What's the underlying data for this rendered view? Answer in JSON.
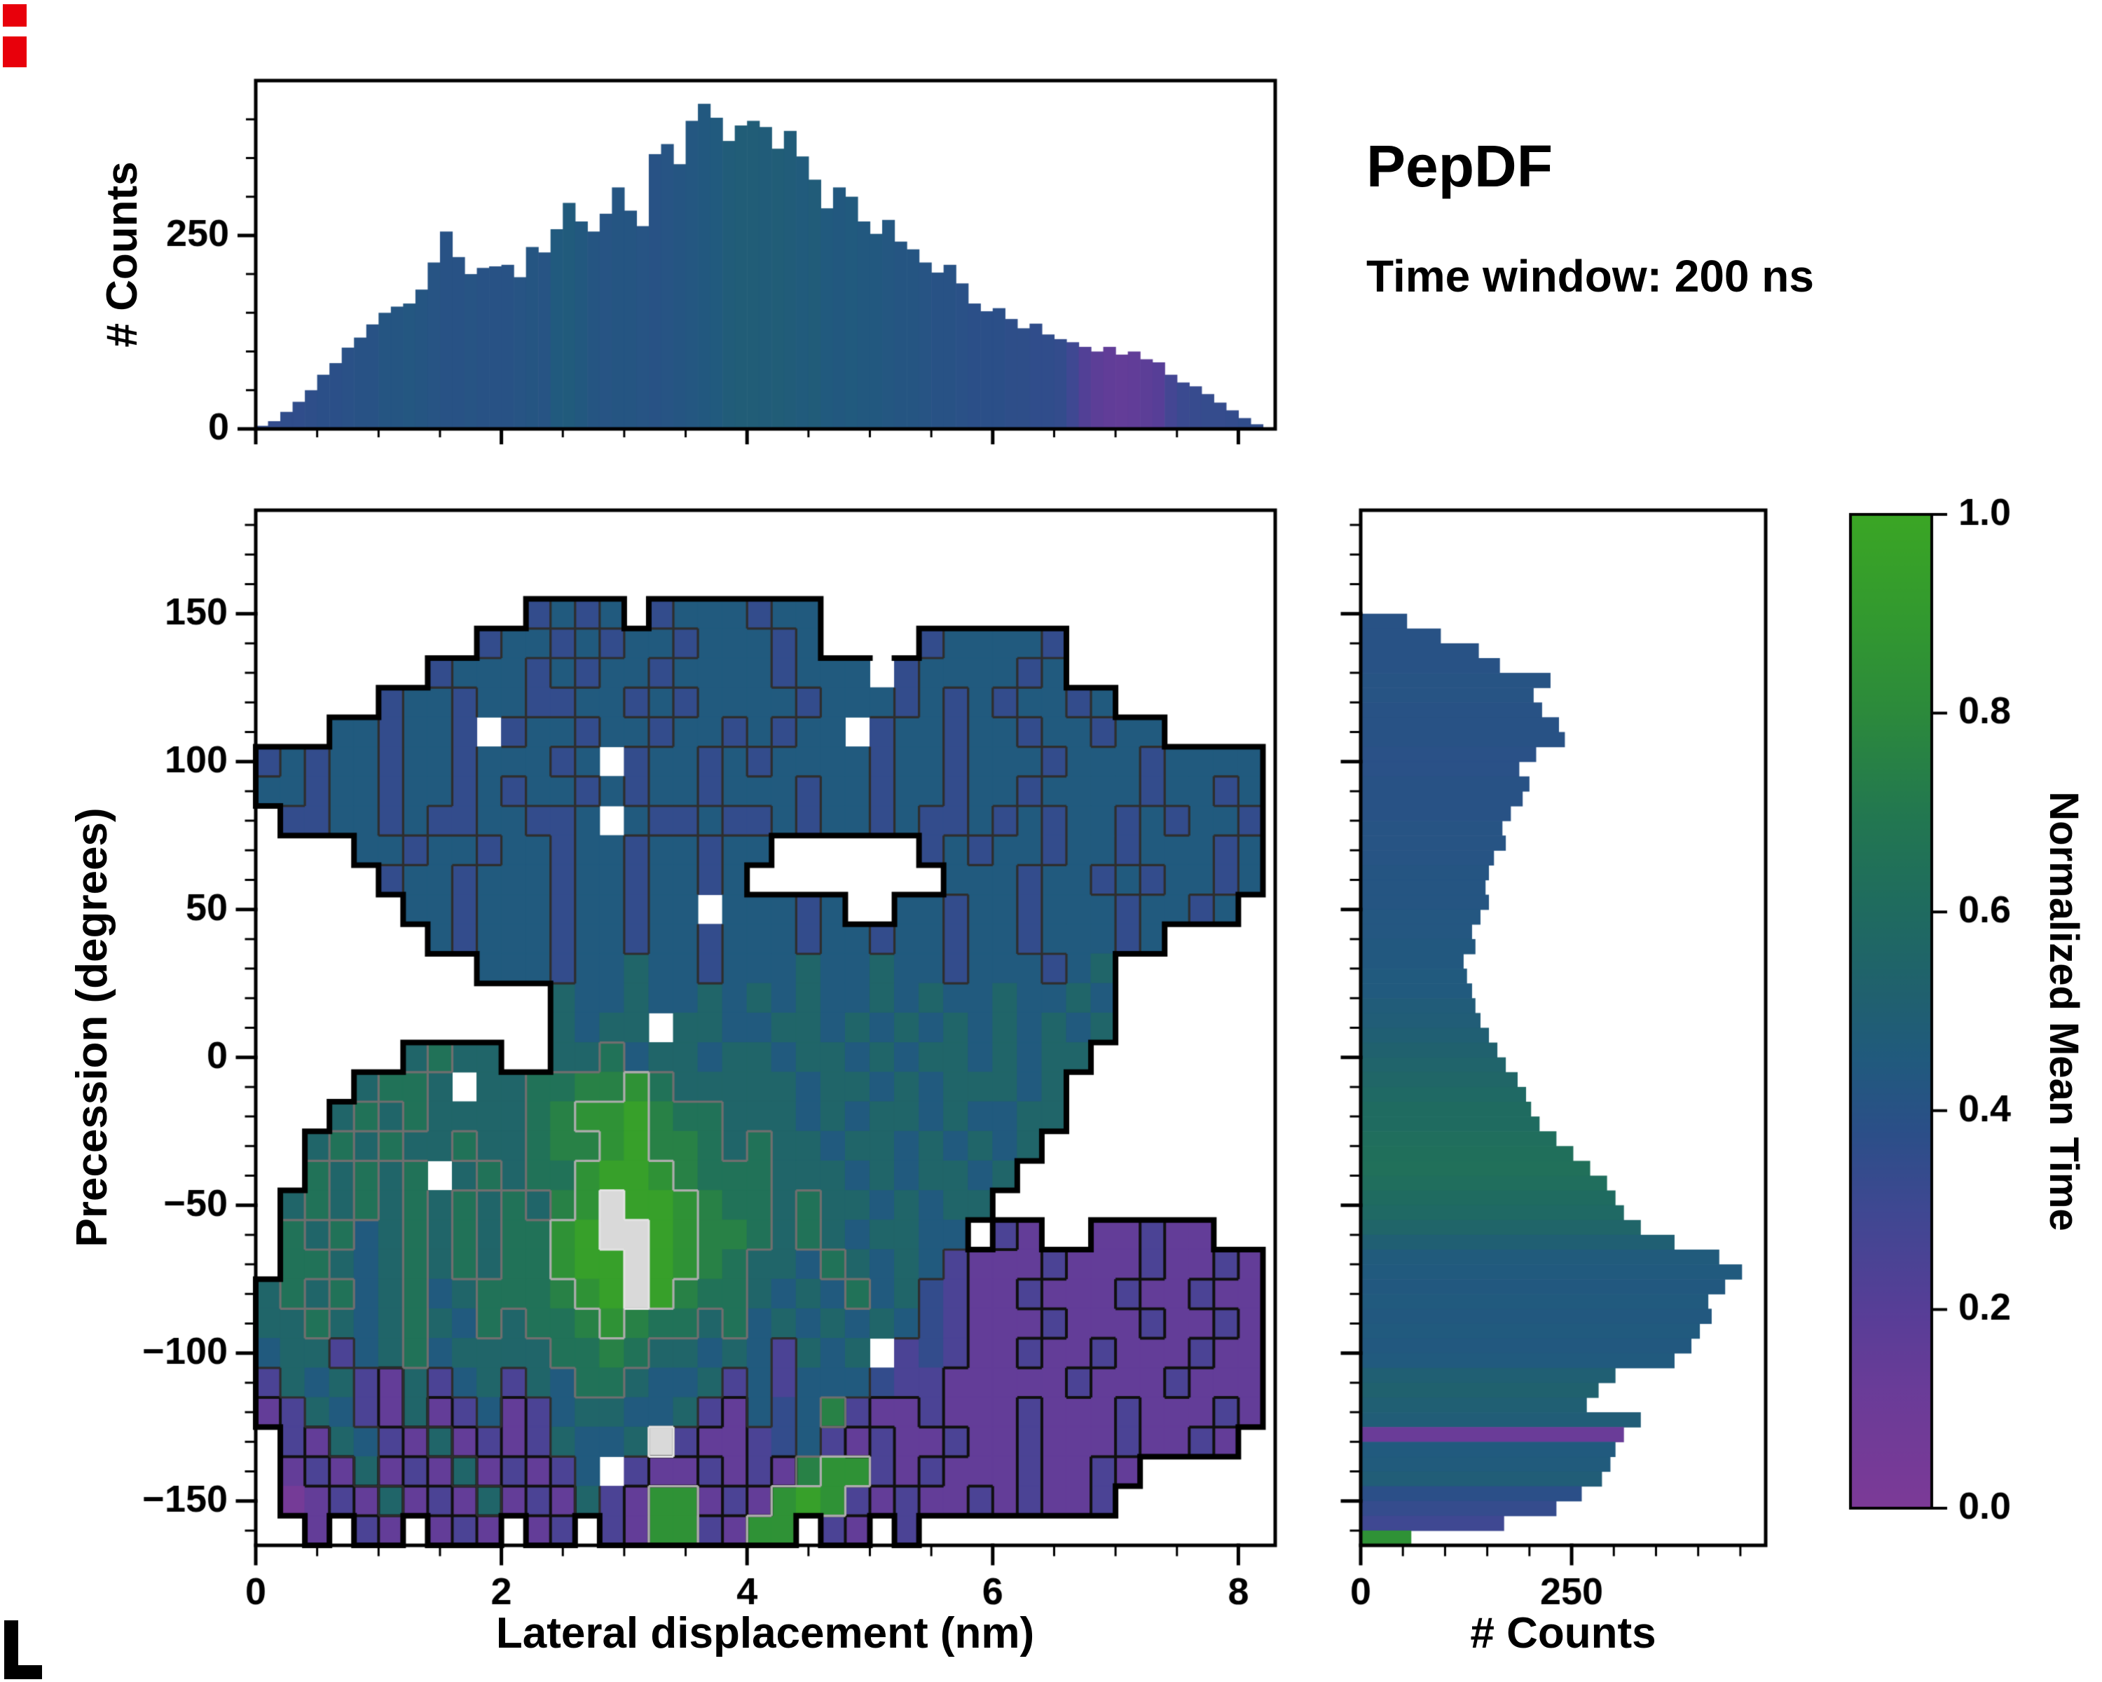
{
  "figure": {
    "title": "PepDF",
    "subtitle": "Time window: 200 ns",
    "background": "#ffffff"
  },
  "labels": {
    "top_ylabel": "# Counts",
    "main_ylabel": "Precession (degrees)",
    "main_xlabel": "Lateral displacement (nm)",
    "right_xlabel": "# Counts",
    "colorbar_label": "Normalized Mean Time"
  },
  "artifact_colors": {
    "red_marks": "#e8000b",
    "corner_mark": "#000000"
  },
  "colormap": {
    "name": "purple-blue-green",
    "stops": [
      [
        0.0,
        "#7c3a97"
      ],
      [
        0.12,
        "#6a3c98"
      ],
      [
        0.2,
        "#573e97"
      ],
      [
        0.3,
        "#3f4892"
      ],
      [
        0.38,
        "#2b4f88"
      ],
      [
        0.45,
        "#215a7e"
      ],
      [
        0.52,
        "#20616e"
      ],
      [
        0.6,
        "#1f6b60"
      ],
      [
        0.7,
        "#237850"
      ],
      [
        0.8,
        "#2c8a3c"
      ],
      [
        0.9,
        "#339a2f"
      ],
      [
        1.0,
        "#3ba625"
      ]
    ],
    "white_hotspot": "#d9d9d9"
  },
  "chart_data": [
    {
      "id": "top_histogram",
      "type": "bar",
      "ylabel": "# Counts",
      "xlim": [
        0,
        8.3
      ],
      "ylim": [
        0,
        450
      ],
      "yticks": [
        0,
        250
      ],
      "bin_start": 0,
      "bin_width": 0.1,
      "counts": [
        4,
        10,
        22,
        35,
        50,
        70,
        85,
        105,
        118,
        135,
        150,
        158,
        162,
        180,
        215,
        255,
        222,
        200,
        208,
        210,
        212,
        196,
        235,
        228,
        258,
        292,
        268,
        255,
        278,
        312,
        282,
        262,
        355,
        368,
        342,
        398,
        420,
        402,
        372,
        392,
        398,
        390,
        362,
        385,
        352,
        322,
        285,
        312,
        300,
        268,
        252,
        270,
        242,
        232,
        215,
        202,
        212,
        188,
        162,
        152,
        156,
        142,
        130,
        136,
        122,
        116,
        112,
        106,
        100,
        106,
        96,
        100,
        90,
        86,
        70,
        60,
        55,
        45,
        34,
        24,
        14,
        6
      ],
      "mean_time": [
        0.35,
        0.35,
        0.36,
        0.36,
        0.37,
        0.38,
        0.38,
        0.39,
        0.4,
        0.4,
        0.42,
        0.42,
        0.43,
        0.42,
        0.41,
        0.4,
        0.4,
        0.41,
        0.4,
        0.4,
        0.4,
        0.41,
        0.42,
        0.41,
        0.45,
        0.46,
        0.44,
        0.42,
        0.41,
        0.42,
        0.42,
        0.41,
        0.4,
        0.41,
        0.42,
        0.43,
        0.44,
        0.45,
        0.47,
        0.48,
        0.48,
        0.47,
        0.48,
        0.47,
        0.46,
        0.47,
        0.45,
        0.44,
        0.45,
        0.44,
        0.44,
        0.43,
        0.42,
        0.42,
        0.41,
        0.4,
        0.4,
        0.39,
        0.38,
        0.38,
        0.38,
        0.37,
        0.37,
        0.36,
        0.36,
        0.35,
        0.3,
        0.22,
        0.18,
        0.16,
        0.15,
        0.16,
        0.18,
        0.2,
        0.28,
        0.32,
        0.33,
        0.34,
        0.34,
        0.35,
        0.36,
        0.36
      ]
    },
    {
      "id": "main_heatmap",
      "type": "heatmap",
      "xlabel": "Lateral displacement (nm)",
      "ylabel": "Precession (degrees)",
      "xlim": [
        0,
        8.3
      ],
      "ylim": [
        -165,
        185
      ],
      "xticks": [
        0,
        2,
        4,
        6,
        8
      ],
      "yticks": [
        -150,
        -100,
        -50,
        0,
        50,
        100,
        150
      ],
      "value_label": "Normalized Mean Time",
      "grid_top": 185,
      "grid_left": 0,
      "cell_size": {
        "x": 0.2,
        "y": 10
      },
      "encoding": "each row = 41 cells; digit d -> value (d+0.5)/10 ; w -> white hotspot (1.0) ; x -> empty speckle ; . -> outside region",
      "row_chunks": [
        [
          "..........",
          "..........",
          "..........",
          "..........."
        ],
        [
          "..........",
          "..........",
          "..........",
          "..........."
        ],
        [
          "..........",
          "..........",
          "..........",
          "..........."
        ],
        [
          "..........",
          ".3434.3444",
          "344.......",
          "..........."
        ],
        [
          ".........3",
          "4434344344",
          "434....344",
          "443........"
        ],
        [
          ".......344",
          "4343443444",
          "43444x3444",
          "434........"
        ],
        [
          ".....34434",
          "4334434344",
          "4434443434",
          "34434......"
        ],
        [
          "...443443x",
          "3443443443",
          "4344x34434",
          "4344344...."
        ],
        [
          "3434434434",
          "4434x34434",
          "3444434434",
          "44344434444"
        ],
        [
          "4434434434",
          "3443434434",
          "4434434434",
          "43444434434"
        ],
        [
          ".334434334",
          "4334x43343",
          "3434434334",
          "34344343443"
        ],
        [
          "....443443",
          "4434434434",
          "4......343",
          "44344344434"
        ],
        [
          ".....34434",
          "4434434434",
          "........44",
          "43443434434"
        ],
        [
          "......4434",
          "44344344x4",
          "4434..4434",
          "4344434434."
        ],
        [
          ".......434",
          "4434434434",
          "4434434434",
          "4344434...."
        ],
        [
          ".........4",
          "4434454434",
          "4454454434",
          "44345......"
        ],
        [
          "..........",
          "..54454454",
          "5454454544",
          "54454......"
        ],
        [
          "..........",
          "..5455x554",
          "4554545454",
          "54545......"
        ],
        [
          "......5655",
          "..55645545",
          "5455454554",
          "5455......."
        ],
        [
          "....5665x5",
          "5667786555",
          "5545545455",
          "545........"
        ],
        [
          "...5656555",
          "5678897665",
          "5545455454",
          "455........"
        ],
        [
          "..56565565",
          "5677897765",
          "6554554545",
          "45........."
        ],
        [
          "..65656x56",
          "5668998766",
          "6555454554",
          "5.........."
        ],
        [
          ".565656565",
          "6578w99876",
          "6565545455",
          "..........."
        ],
        [
          ".656456565",
          "6689ww9877",
          "656545544.",
          "21..11211.."
        ],
        [
          ".665456565",
          "66899w9876",
          "5546545421",
          "11211121121"
        ],
        [
          "5656456456",
          "66789w9766",
          "5454645321",
          "12111211211"
        ],
        [
          "5565456546",
          "5667876656",
          "4545454321",
          "11211121121"
        ],
        [
          "4552456455",
          "5566765545",
          "42545x2321",
          "12112111211"
        ],
        [
          "2545215245",
          "2546654452",
          "4244432211",
          "11121112111"
        ],
        [
          "1254215124",
          "1245544521",
          "4347211211",
          "12111211121"
        ],
        [
          ".215421512",
          "125445w211",
          "2342121121",
          "1211121121."
        ],
        [
          ".121512151",
          "2124x21121",
          "2178821211",
          "121121....."
        ],
        [
          ".012151215",
          "1215218812",
          "1898212112",
          "12112......"
        ],
        [
          "..1.21.121",
          ".12.218821",
          "88.21.2...",
          "..........."
        ]
      ]
    },
    {
      "id": "right_histogram",
      "type": "bar",
      "orientation": "horizontal",
      "xlabel": "# Counts",
      "xlim": [
        0,
        480
      ],
      "xticks": [
        0,
        250
      ],
      "ylim": [
        -165,
        185
      ],
      "bin_start_top": 185,
      "bin_width": 5,
      "counts": [
        0,
        0,
        0,
        0,
        0,
        0,
        0,
        55,
        95,
        140,
        165,
        225,
        205,
        215,
        235,
        242,
        208,
        188,
        200,
        192,
        178,
        168,
        172,
        158,
        152,
        148,
        152,
        142,
        132,
        136,
        122,
        126,
        132,
        136,
        142,
        152,
        162,
        172,
        186,
        196,
        202,
        212,
        232,
        252,
        272,
        292,
        302,
        312,
        332,
        372,
        425,
        452,
        432,
        412,
        416,
        402,
        392,
        372,
        302,
        282,
        268,
        332,
        312,
        302,
        296,
        286,
        262,
        232,
        170,
        60
      ],
      "mean_time": [
        0.4,
        0.4,
        0.4,
        0.4,
        0.4,
        0.4,
        0.4,
        0.4,
        0.4,
        0.4,
        0.4,
        0.41,
        0.41,
        0.4,
        0.4,
        0.4,
        0.39,
        0.39,
        0.4,
        0.4,
        0.4,
        0.41,
        0.41,
        0.41,
        0.42,
        0.42,
        0.42,
        0.43,
        0.43,
        0.44,
        0.44,
        0.45,
        0.45,
        0.47,
        0.48,
        0.5,
        0.52,
        0.54,
        0.56,
        0.58,
        0.6,
        0.6,
        0.62,
        0.63,
        0.64,
        0.62,
        0.6,
        0.58,
        0.55,
        0.5,
        0.46,
        0.45,
        0.44,
        0.45,
        0.44,
        0.45,
        0.44,
        0.45,
        0.5,
        0.52,
        0.5,
        0.48,
        0.12,
        0.45,
        0.46,
        0.48,
        0.38,
        0.34,
        0.3,
        0.85
      ]
    },
    {
      "id": "colorbar",
      "type": "colorbar",
      "label": "Normalized Mean Time",
      "range": [
        0,
        1
      ],
      "ticks": [
        "0.0",
        "0.2",
        "0.4",
        "0.6",
        "0.8",
        "1.0"
      ]
    }
  ]
}
